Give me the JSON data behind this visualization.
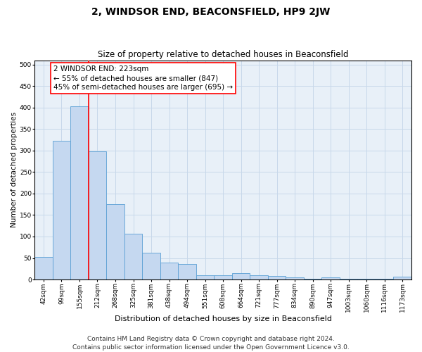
{
  "title": "2, WINDSOR END, BEACONSFIELD, HP9 2JW",
  "subtitle": "Size of property relative to detached houses in Beaconsfield",
  "xlabel": "Distribution of detached houses by size in Beaconsfield",
  "ylabel": "Number of detached properties",
  "categories": [
    "42sqm",
    "99sqm",
    "155sqm",
    "212sqm",
    "268sqm",
    "325sqm",
    "381sqm",
    "438sqm",
    "494sqm",
    "551sqm",
    "608sqm",
    "664sqm",
    "721sqm",
    "777sqm",
    "834sqm",
    "890sqm",
    "947sqm",
    "1003sqm",
    "1060sqm",
    "1116sqm",
    "1173sqm"
  ],
  "values": [
    52,
    322,
    403,
    298,
    175,
    107,
    62,
    40,
    36,
    10,
    10,
    15,
    10,
    8,
    5,
    2,
    5,
    1,
    2,
    1,
    6
  ],
  "bar_color": "#c5d8f0",
  "bar_edge_color": "#5a9fd4",
  "grid_color": "#c8d8ea",
  "background_color": "#e8f0f8",
  "annotation_box_text": "2 WINDSOR END: 223sqm\n← 55% of detached houses are smaller (847)\n45% of semi-detached houses are larger (695) →",
  "annotation_box_color": "white",
  "annotation_box_edge_color": "red",
  "vline_color": "red",
  "ylim": [
    0,
    510
  ],
  "yticks": [
    0,
    50,
    100,
    150,
    200,
    250,
    300,
    350,
    400,
    450,
    500
  ],
  "footer1": "Contains HM Land Registry data © Crown copyright and database right 2024.",
  "footer2": "Contains public sector information licensed under the Open Government Licence v3.0.",
  "title_fontsize": 10,
  "subtitle_fontsize": 8.5,
  "xlabel_fontsize": 8,
  "ylabel_fontsize": 7.5,
  "tick_fontsize": 6.5,
  "footer_fontsize": 6.5,
  "annotation_fontsize": 7.5
}
